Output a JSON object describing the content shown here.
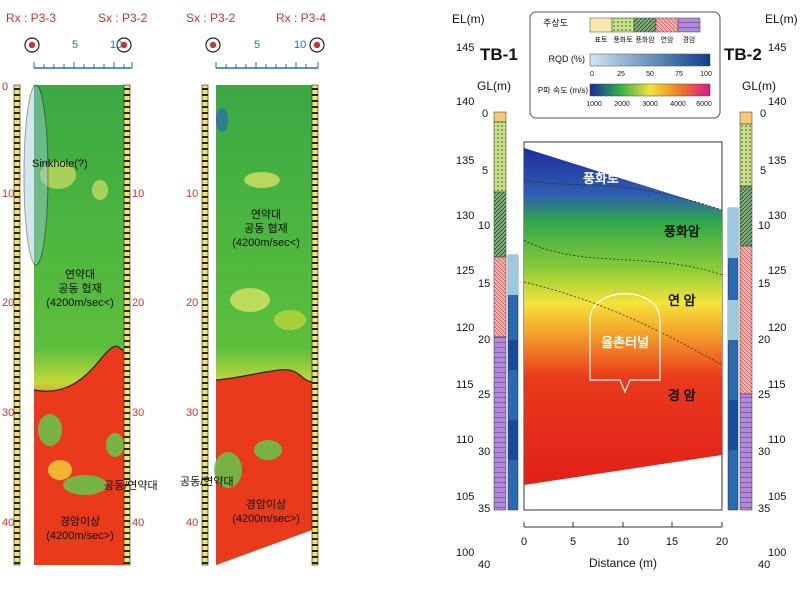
{
  "left_panel_a": {
    "rx_label": "Rx : P3-3",
    "sx_label": "Sx : P3-2",
    "scale_ticks": [
      "5",
      "10"
    ],
    "depth_ticks": [
      "0",
      "10",
      "20",
      "30",
      "40"
    ],
    "sinkhole_label": "Sinkhole(?)",
    "weak_zone_label": [
      "연약대",
      "공동 협재",
      "(4200m/sec<)"
    ],
    "cavity_label": "공동/연약대",
    "hard_rock_label": [
      "경암이상",
      "(4200m/sec>)"
    ]
  },
  "left_panel_b": {
    "sx_label": "Sx : P3-2",
    "rx_label": "Rx : P3-4",
    "scale_ticks": [
      "5",
      "10"
    ],
    "depth_ticks": [
      "10",
      "20",
      "30",
      "40"
    ],
    "weak_zone_label": [
      "연약대",
      "공동 협재",
      "(4200m/sec<)"
    ],
    "cavity_label": "공동/연약대",
    "hard_rock_label": [
      "경암이상",
      "(4200m/sec>)"
    ]
  },
  "right_panel": {
    "el_label": "EL(m)",
    "gl_label": "GL(m)",
    "tb1": "TB-1",
    "tb2": "TB-2",
    "el_ticks": [
      "145",
      "140",
      "135",
      "130",
      "125",
      "120",
      "115",
      "110",
      "105",
      "100"
    ],
    "gl_ticks": [
      "0",
      "5",
      "10",
      "15",
      "20",
      "25",
      "30",
      "35",
      "40"
    ],
    "x_ticks": [
      "0",
      "5",
      "10",
      "15",
      "20"
    ],
    "x_label": "Distance (m)",
    "legend": {
      "row1_title": "주상도",
      "row1_items": [
        "표토",
        "풍화토",
        "풍화암",
        "연암",
        "경암"
      ],
      "row2_title": "RQD (%)",
      "row2_ticks": [
        "0",
        "25",
        "50",
        "75",
        "100"
      ],
      "row3_title": "P파 속도 (m/s)",
      "row3_ticks": [
        "1000",
        "2000",
        "3000",
        "4000",
        "6000"
      ]
    },
    "zones": [
      "풍화토",
      "풍화암",
      "연 암",
      "경 암"
    ],
    "tunnel_label": "율촌터널",
    "colors": {
      "weathered_soil": "#2f3fa8",
      "weathered_rock": "#2fb04a",
      "soft_rock": "#f2e03a",
      "hard_rock": "#e8281c"
    }
  }
}
